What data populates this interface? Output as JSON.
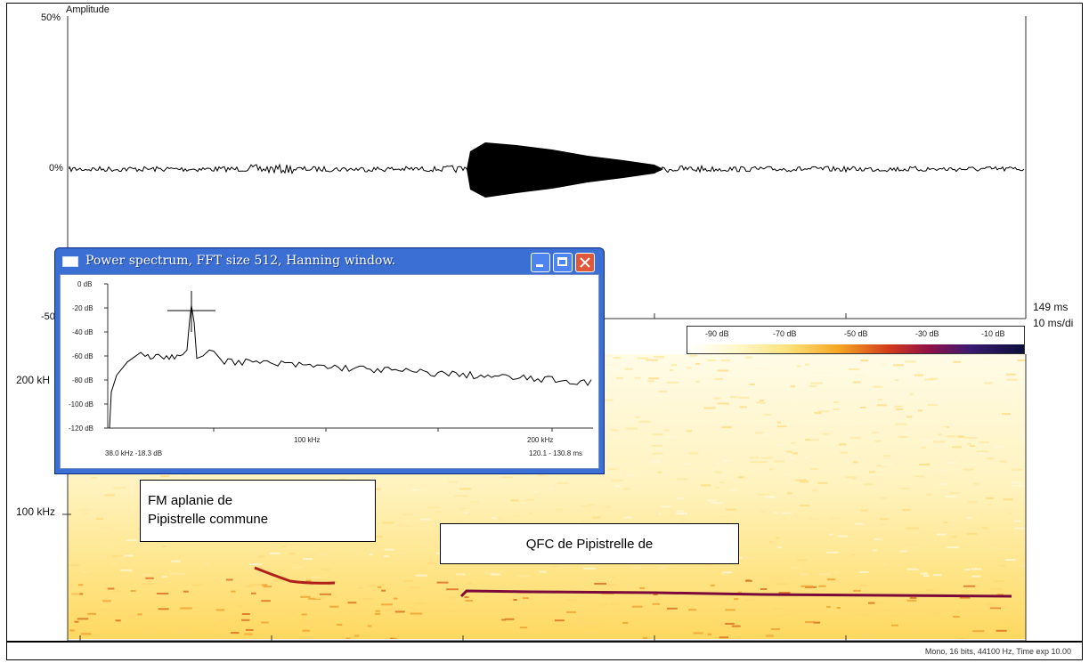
{
  "waveform": {
    "y_label": "Amplitude",
    "y_ticks": [
      "50%",
      "0%",
      "-50"
    ],
    "time_total": "149 ms",
    "time_scale": "10 ms/di"
  },
  "colorbar": {
    "labels": [
      "-90 dB",
      "-70 dB",
      "-50 dB",
      "-30 dB",
      "-10 dB"
    ]
  },
  "spectrogram": {
    "y_ticks": [
      "200 kH",
      "100 kHz"
    ]
  },
  "annotations": {
    "fm_line1": "FM aplanie de",
    "fm_line2": "Pipistrelle commune",
    "qfc": "QFC de Pipistrelle de"
  },
  "power_spectrum": {
    "title": "Power spectrum, FFT size 512, Hanning window.",
    "y_ticks": [
      "0 dB",
      "-20 dB",
      "-40 dB",
      "-60 dB",
      "-80 dB",
      "-100 dB",
      "-120 dB"
    ],
    "x_ticks": [
      "100 kHz",
      "200 kHz"
    ],
    "cursor_readout": "38.0 kHz -18.3 dB",
    "time_range": "120.1 - 130.8 ms"
  },
  "status": {
    "text": "Mono, 16 bits, 44100 Hz, Time exp 10.00"
  },
  "colors": {
    "dialog_title": "#3b6fd4",
    "close_button": "#e0583a",
    "spectrogram_background": "#fff3b8",
    "call_trace": "#8a0f2a"
  }
}
